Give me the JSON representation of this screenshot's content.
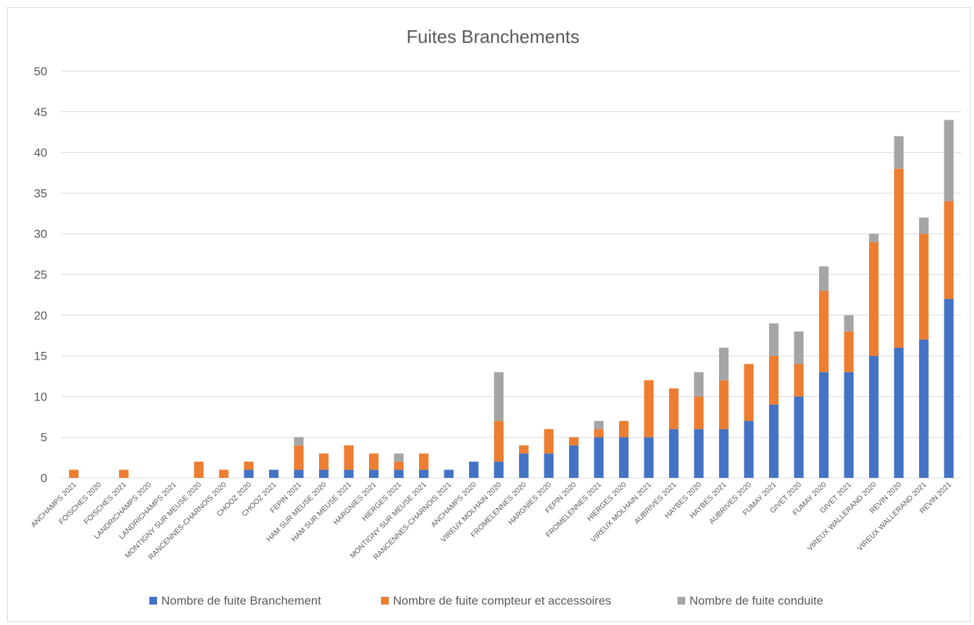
{
  "chart_data": {
    "type": "bar",
    "stacked": true,
    "title": "Fuites Branchements",
    "xlabel": "",
    "ylabel": "",
    "ylim": [
      0,
      50
    ],
    "yticks": [
      0,
      5,
      10,
      15,
      20,
      25,
      30,
      35,
      40,
      45,
      50
    ],
    "grid": true,
    "legend_position": "bottom",
    "categories": [
      "ANCHAMPS 2021",
      "FOISCHES 2020",
      "FOISCHES 2021",
      "LANDRICHAMPS 2020",
      "LANDRICHAMPS 2021",
      "MONTIGNY SUR MEUSE 2020",
      "RANCENNES-CHARNOIS 2020",
      "CHOOZ 2020",
      "CHOOZ 2021",
      "FEPIN 2021",
      "HAM SUR MEUSE 2020",
      "HAM SUR MEUSE 2021",
      "HARGNIES 2021",
      "HIERGES 2021",
      "MONTIGNY SUR MEUSE 2021",
      "RANCENNES-CHARNOIS 2021",
      "ANCHAMPS 2020",
      "VIREUX MOLHAIN 2020",
      "FROMELENNES 2020",
      "HARGNIES 2020",
      "FEPIN 2020",
      "FROMELENNES 2021",
      "HIERGES 2020",
      "VIREUX MOLHAIN 2021",
      "AUBRIVES 2021",
      "HAYBES 2020",
      "HAYBES 2021",
      "AUBRIVES 2020",
      "FUMAY 2021",
      "GIVET 2020",
      "FUMAY 2020",
      "GIVET 2021",
      "VIREUX WALLERAND 2020",
      "REVIN 2020",
      "VIREUX WALLERAND 2021",
      "REVIN 2021"
    ],
    "series": [
      {
        "name": "Nombre de fuite Branchement",
        "color": "#4472c4",
        "values": [
          0,
          0,
          0,
          0,
          0,
          0,
          0,
          1,
          1,
          1,
          1,
          1,
          1,
          1,
          1,
          1,
          2,
          2,
          3,
          3,
          4,
          5,
          5,
          5,
          6,
          6,
          6,
          7,
          9,
          10,
          13,
          13,
          15,
          16,
          17,
          22
        ]
      },
      {
        "name": "Nombre de fuite compteur et accessoires",
        "color": "#ed7d31",
        "values": [
          1,
          0,
          1,
          0,
          0,
          2,
          1,
          1,
          0,
          3,
          2,
          3,
          2,
          1,
          2,
          0,
          0,
          5,
          1,
          3,
          1,
          1,
          2,
          7,
          5,
          4,
          6,
          7,
          6,
          4,
          10,
          5,
          14,
          22,
          13,
          12
        ]
      },
      {
        "name": "Nombre de fuite conduite",
        "color": "#a5a5a5",
        "values": [
          0,
          0,
          0,
          0,
          0,
          0,
          0,
          0,
          0,
          1,
          0,
          0,
          0,
          1,
          0,
          0,
          0,
          6,
          0,
          0,
          0,
          1,
          0,
          0,
          0,
          3,
          4,
          0,
          4,
          4,
          3,
          2,
          1,
          4,
          2,
          10
        ]
      }
    ]
  }
}
